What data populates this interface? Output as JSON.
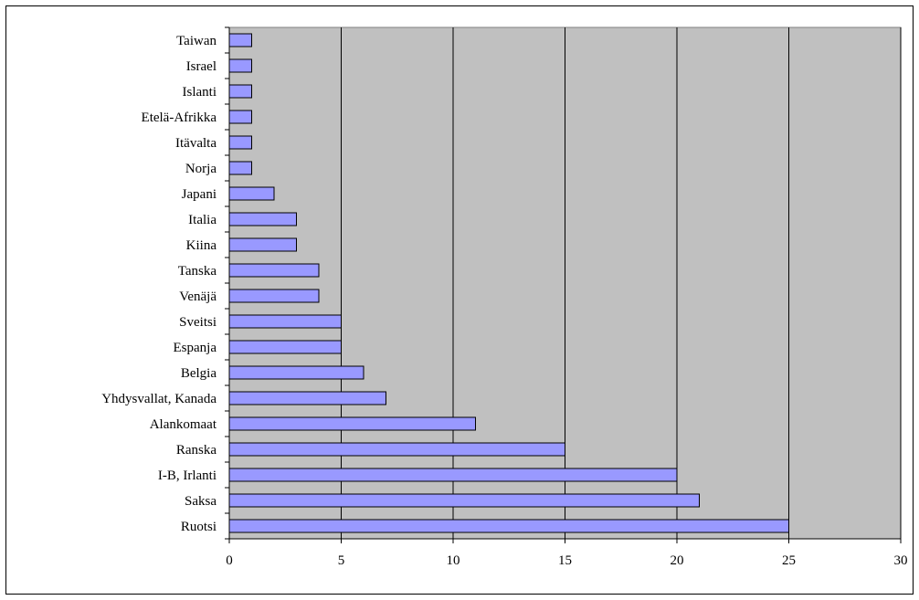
{
  "chart_data": {
    "type": "bar",
    "orientation": "horizontal",
    "categories": [
      "Ruotsi",
      "Saksa",
      "I-B, Irlanti",
      "Ranska",
      "Alankomaat",
      "Yhdysvallat, Kanada",
      "Belgia",
      "Espanja",
      "Sveitsi",
      "Venäjä",
      "Tanska",
      "Kiina",
      "Italia",
      "Japani",
      "Norja",
      "Itävalta",
      "Etelä-Afrikka",
      "Islanti",
      "Israel",
      "Taiwan"
    ],
    "values": [
      25,
      21,
      20,
      15,
      11,
      7,
      6,
      5,
      5,
      4,
      4,
      3,
      3,
      2,
      1,
      1,
      1,
      1,
      1,
      1
    ],
    "xlim": [
      0,
      30
    ],
    "xticks": [
      0,
      5,
      10,
      15,
      20,
      25,
      30
    ],
    "title": "",
    "xlabel": "",
    "ylabel": "",
    "grid": "vertical",
    "legend": "none",
    "colors": {
      "bar_fill": "#9999ff",
      "bar_stroke": "#000000",
      "plot_background": "#c0c0c0",
      "gridline": "#000000"
    }
  }
}
